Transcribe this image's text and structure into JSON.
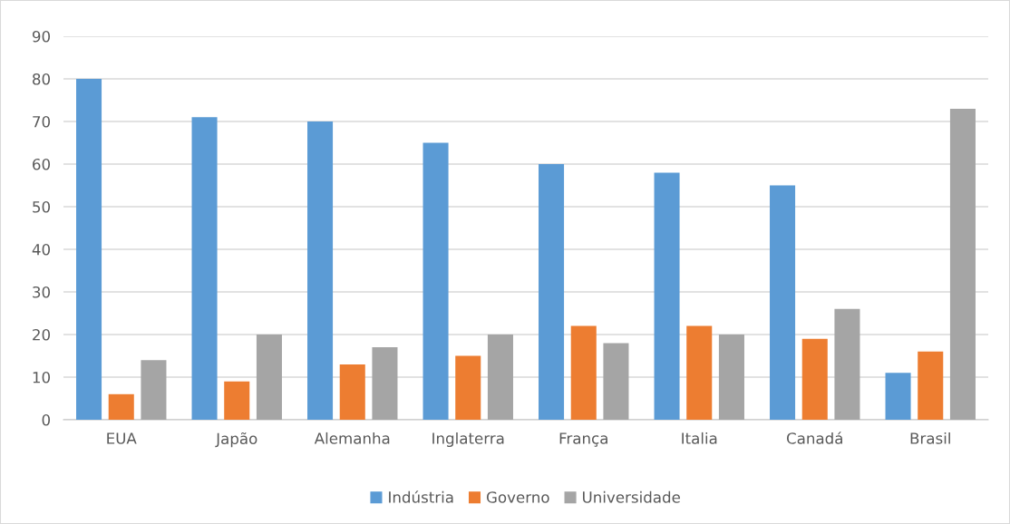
{
  "chart_data": {
    "type": "bar",
    "categories": [
      "EUA",
      "Japão",
      "Alemanha",
      "Inglaterra",
      "França",
      "Italia",
      "Canadá",
      "Brasil"
    ],
    "series": [
      {
        "name": "Indústria",
        "color": "#5b9bd5",
        "values": [
          80,
          71,
          70,
          65,
          60,
          58,
          55,
          11
        ]
      },
      {
        "name": "Governo",
        "color": "#ed7d31",
        "values": [
          6,
          9,
          13,
          15,
          22,
          22,
          19,
          16
        ]
      },
      {
        "name": "Universidade",
        "color": "#a5a5a5",
        "values": [
          14,
          20,
          17,
          20,
          18,
          20,
          26,
          73
        ]
      }
    ],
    "ylim": [
      0,
      90
    ],
    "yticks": [
      0,
      10,
      20,
      30,
      40,
      50,
      60,
      70,
      80,
      90
    ],
    "grid": "y",
    "legend": "bottom"
  }
}
